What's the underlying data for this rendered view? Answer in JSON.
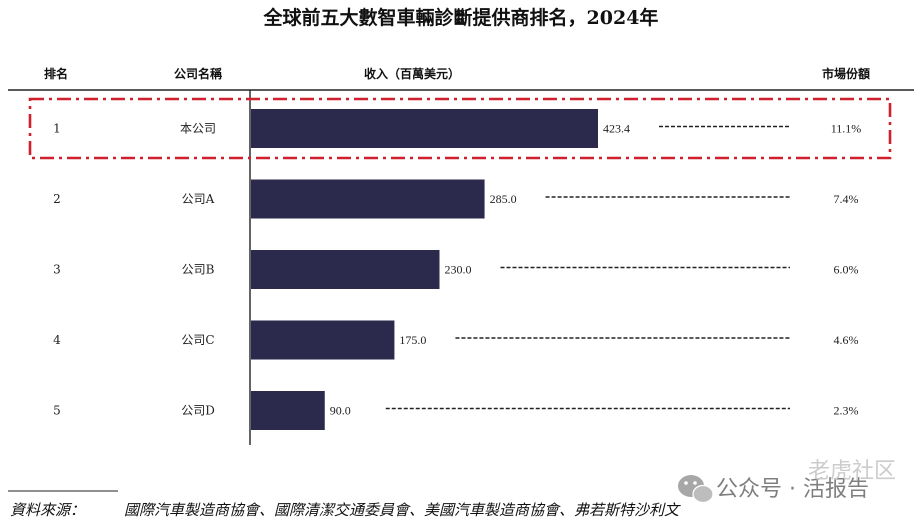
{
  "title": "全球前五大數智車輛診斷提供商排名，2024年",
  "headers": {
    "rank": "排名",
    "company": "公司名稱",
    "revenue": "收入（百萬美元）",
    "share": "市場份額"
  },
  "chart_data": {
    "type": "bar",
    "orientation": "horizontal",
    "title": "全球前五大數智車輛診斷提供商排名，2024年",
    "xlabel": "收入（百萬美元）",
    "ylabel": "",
    "xlim": [
      0,
      640
    ],
    "categories": [
      "本公司",
      "公司A",
      "公司B",
      "公司C",
      "公司D"
    ],
    "ranks": [
      "1",
      "2",
      "3",
      "4",
      "5"
    ],
    "values": [
      423.4,
      285.0,
      230.0,
      175.0,
      90.0
    ],
    "value_labels": [
      "423.4",
      "285.0",
      "230.0",
      "175.0",
      "90.0"
    ],
    "market_share": [
      "11.1%",
      "7.4%",
      "6.0%",
      "4.6%",
      "2.3%"
    ],
    "highlight_index": 0,
    "bar_color": "#2b2a4c",
    "highlight_color": "#d0202e"
  },
  "source": {
    "label": "資料來源：",
    "text": "國際汽車製造商協會、國際清潔交通委員會、美國汽車製造商協會、弗若斯特沙利文"
  },
  "watermark": {
    "text": "公众号 · 活报告",
    "icon": "wechat-icon",
    "faint_text": "老虎社区"
  }
}
